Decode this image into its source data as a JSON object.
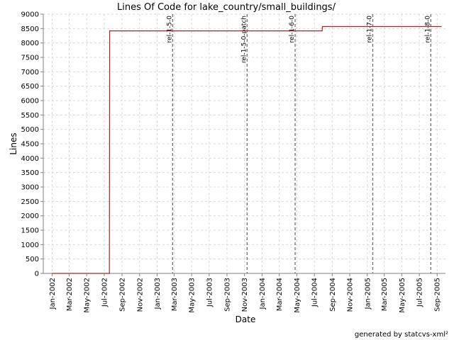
{
  "chart_data": {
    "type": "line",
    "title": "Lines Of Code for lake_country/small_buildings/",
    "xlabel": "Date",
    "ylabel": "Lines",
    "ylim": [
      0,
      9000
    ],
    "xlim": [
      "2001-12-01",
      "2005-09-30"
    ],
    "yticks": [
      0,
      500,
      1000,
      1500,
      2000,
      2500,
      3000,
      3500,
      4000,
      4500,
      5000,
      5500,
      6000,
      6500,
      7000,
      7500,
      8000,
      8500,
      9000
    ],
    "xticks": [
      {
        "date": "2002-01-01",
        "label": "Jan-2002"
      },
      {
        "date": "2002-03-01",
        "label": "Mar-2002"
      },
      {
        "date": "2002-05-01",
        "label": "May-2002"
      },
      {
        "date": "2002-07-01",
        "label": "Jul-2002"
      },
      {
        "date": "2002-09-01",
        "label": "Sep-2002"
      },
      {
        "date": "2002-11-01",
        "label": "Nov-2002"
      },
      {
        "date": "2003-01-01",
        "label": "Jan-2003"
      },
      {
        "date": "2003-03-01",
        "label": "Mar-2003"
      },
      {
        "date": "2003-05-01",
        "label": "May-2003"
      },
      {
        "date": "2003-07-01",
        "label": "Jul-2003"
      },
      {
        "date": "2003-09-01",
        "label": "Sep-2003"
      },
      {
        "date": "2003-11-01",
        "label": "Nov-2003"
      },
      {
        "date": "2004-01-01",
        "label": "Jan-2004"
      },
      {
        "date": "2004-03-01",
        "label": "Mar-2004"
      },
      {
        "date": "2004-05-01",
        "label": "May-2004"
      },
      {
        "date": "2004-07-01",
        "label": "Jul-2004"
      },
      {
        "date": "2004-09-01",
        "label": "Sep-2004"
      },
      {
        "date": "2004-11-01",
        "label": "Nov-2004"
      },
      {
        "date": "2005-01-01",
        "label": "Jan-2005"
      },
      {
        "date": "2005-03-01",
        "label": "Mar-2005"
      },
      {
        "date": "2005-05-01",
        "label": "May-2005"
      },
      {
        "date": "2005-07-01",
        "label": "Jul-2005"
      },
      {
        "date": "2005-09-01",
        "label": "Sep-2005"
      }
    ],
    "series": [
      {
        "color": "#b22222",
        "points": [
          {
            "x": "2002-01-01",
            "y": 0
          },
          {
            "x": "2002-07-19",
            "y": 0
          },
          {
            "x": "2002-07-20",
            "y": 8420
          },
          {
            "x": "2004-07-28",
            "y": 8420
          },
          {
            "x": "2004-07-29",
            "y": 8570
          },
          {
            "x": "2005-09-15",
            "y": 8570
          }
        ]
      }
    ],
    "markers": [
      {
        "date": "2003-02-24",
        "label": "rel-1-5-0"
      },
      {
        "date": "2003-11-10",
        "label": "rel-1-5-0-patch"
      },
      {
        "date": "2004-04-25",
        "label": "rel-1-6-0"
      },
      {
        "date": "2005-01-20",
        "label": "rel-1-7-0"
      },
      {
        "date": "2005-08-10",
        "label": "rel-1-8-0"
      }
    ],
    "grid": true,
    "legend": "none"
  },
  "footer": {
    "credit": "generated by statcvs-xml²"
  },
  "colors": {
    "line": "#b22222",
    "grid": "#d9d9d9",
    "marker": "#6e6e6e",
    "axis": "#808080"
  }
}
